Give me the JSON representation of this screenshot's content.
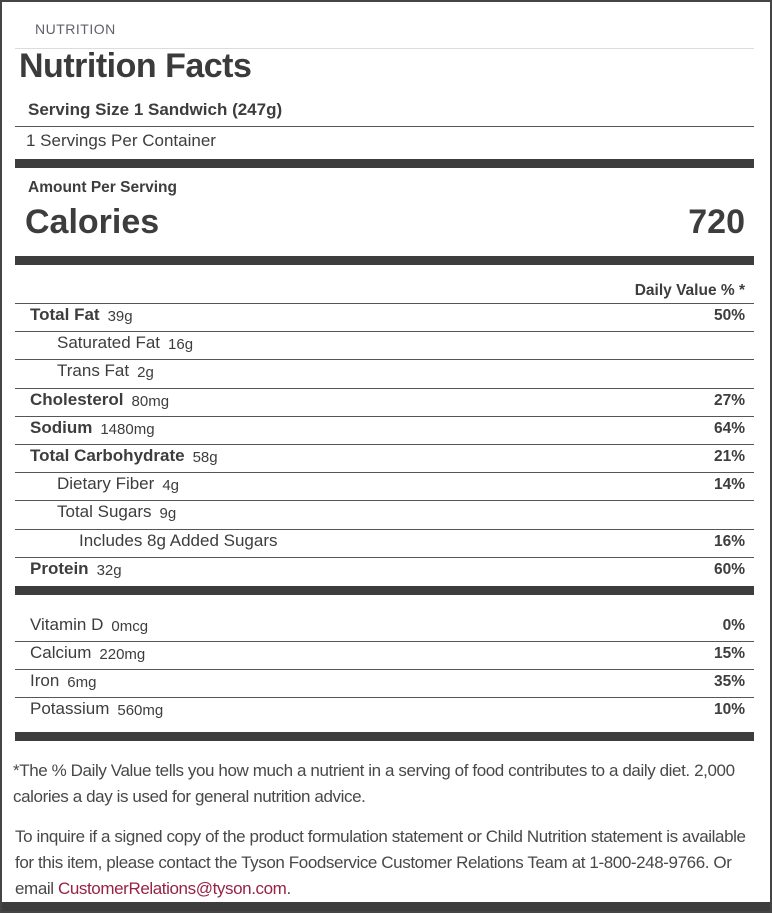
{
  "page": {
    "section_label": "NUTRITION",
    "title": "Nutrition Facts",
    "serving_size": "Serving Size 1 Sandwich (247g)",
    "servings_per_container": "1 Servings Per Container",
    "amount_per_serving": "Amount Per Serving",
    "calories_label": "Calories",
    "calories_value": "720",
    "daily_value_header": "Daily Value % *"
  },
  "nutrients": [
    {
      "name": "Total Fat",
      "amount": "39g",
      "dv": "50%"
    },
    {
      "name": "Saturated Fat",
      "amount": "16g",
      "dv": ""
    },
    {
      "name": "Trans Fat",
      "amount": "2g",
      "dv": ""
    },
    {
      "name": "Cholesterol",
      "amount": "80mg",
      "dv": "27%"
    },
    {
      "name": "Sodium",
      "amount": "1480mg",
      "dv": "64%"
    },
    {
      "name": "Total Carbohydrate",
      "amount": "58g",
      "dv": "21%"
    },
    {
      "name": "Dietary Fiber",
      "amount": "4g",
      "dv": "14%"
    },
    {
      "name": "Total Sugars",
      "amount": "9g",
      "dv": ""
    },
    {
      "name": "Includes 8g Added Sugars",
      "amount": "",
      "dv": "16%"
    },
    {
      "name": "Protein",
      "amount": "32g",
      "dv": "60%"
    }
  ],
  "vitamins": [
    {
      "name": "Vitamin D",
      "amount": "0mcg",
      "dv": "0%"
    },
    {
      "name": "Calcium",
      "amount": "220mg",
      "dv": "15%"
    },
    {
      "name": "Iron",
      "amount": "6mg",
      "dv": "35%"
    },
    {
      "name": "Potassium",
      "amount": "560mg",
      "dv": "10%"
    }
  ],
  "footnote": {
    "line1": "*The % Daily Value tells you how much a nutrient in a serving of food contributes to a daily diet. 2,000",
    "line2": "calories a day is used for general nutrition advice."
  },
  "contact": {
    "line1": "To inquire if a signed copy of the product formulation statement or Child Nutrition statement is available",
    "line2": "for this item, please contact the Tyson Foodservice Customer Relations Team at 1-800-248-9766. Or",
    "line3_prefix": "email ",
    "email": "CustomerRelations@tyson.com",
    "line3_suffix": "."
  },
  "colors": {
    "email_link": "#962346",
    "bar": "#3d3d3d",
    "text": "#3d3d3d"
  }
}
